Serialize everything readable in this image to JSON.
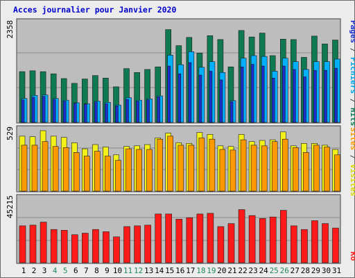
{
  "chart_data": [
    {
      "type": "bar",
      "title": "Acces journalier pour Janvier 2020",
      "categories": [
        "1",
        "2",
        "3",
        "4",
        "5",
        "6",
        "7",
        "8",
        "9",
        "10",
        "11",
        "12",
        "13",
        "14",
        "15",
        "16",
        "17",
        "18",
        "19",
        "20",
        "21",
        "22",
        "23",
        "24",
        "25",
        "26",
        "27",
        "28",
        "29",
        "30",
        "31"
      ],
      "weekend_days": [
        "4",
        "5",
        "11",
        "12",
        "18",
        "19",
        "25",
        "26"
      ],
      "ymax_label": "2358",
      "ylim": [
        0,
        2358
      ],
      "ylabel_parts": [
        "Pages",
        "Fichiers",
        "Hits"
      ],
      "series": [
        {
          "name": "Hits",
          "color": "#0f7a52",
          "values": [
            1170,
            1190,
            1170,
            1120,
            1010,
            900,
            1000,
            1080,
            1020,
            820,
            1240,
            1150,
            1220,
            1280,
            2140,
            1770,
            1960,
            1600,
            2000,
            1910,
            1280,
            2120,
            1970,
            2060,
            1540,
            1920,
            1910,
            1500,
            1990,
            1810,
            1900
          ]
        },
        {
          "name": "Fichiers",
          "color": "#00b0ff",
          "values": [
            550,
            620,
            630,
            550,
            510,
            450,
            430,
            490,
            460,
            400,
            570,
            510,
            540,
            610,
            1550,
            1330,
            1630,
            1270,
            1400,
            1150,
            500,
            1480,
            1540,
            1520,
            1180,
            1480,
            1400,
            1220,
            1400,
            1400,
            1460
          ]
        },
        {
          "name": "Pages",
          "color": "#1b2fcc",
          "values": [
            520,
            580,
            600,
            530,
            490,
            440,
            420,
            470,
            430,
            380,
            530,
            490,
            520,
            590,
            1300,
            1120,
            1380,
            1090,
            1180,
            980,
            480,
            1280,
            1340,
            1300,
            1020,
            1300,
            1220,
            1050,
            1200,
            1200,
            1250
          ]
        }
      ]
    },
    {
      "type": "bar",
      "ymax_label": "529",
      "ylim": [
        0,
        529
      ],
      "ylabel_parts": [
        "Sites",
        "Visites"
      ],
      "series": [
        {
          "name": "Visites",
          "color": "#f2f21a",
          "values": [
            455,
            450,
            500,
            455,
            445,
            400,
            350,
            385,
            365,
            300,
            370,
            375,
            385,
            440,
            480,
            400,
            395,
            485,
            470,
            375,
            370,
            470,
            410,
            420,
            425,
            490,
            375,
            395,
            395,
            380,
            345
          ]
        },
        {
          "name": "Sites",
          "color": "#ff9900",
          "values": [
            380,
            380,
            410,
            370,
            360,
            320,
            290,
            330,
            290,
            255,
            350,
            345,
            345,
            430,
            455,
            380,
            380,
            440,
            430,
            345,
            340,
            425,
            380,
            375,
            410,
            430,
            360,
            320,
            380,
            365,
            300
          ]
        }
      ]
    },
    {
      "type": "bar",
      "ymax_label": "45215",
      "ylim": [
        0,
        45215
      ],
      "ylabel_parts": [
        "Ko"
      ],
      "series": [
        {
          "name": "Ko",
          "color": "#ff1a1a",
          "values": [
            25000,
            25500,
            27500,
            22500,
            22000,
            19000,
            20000,
            22500,
            21000,
            17500,
            24500,
            25000,
            25500,
            33000,
            33000,
            29500,
            30500,
            33000,
            33500,
            24500,
            26500,
            36000,
            32000,
            30000,
            31000,
            35500,
            25000,
            22500,
            28500,
            26500,
            23500
          ]
        }
      ]
    }
  ]
}
